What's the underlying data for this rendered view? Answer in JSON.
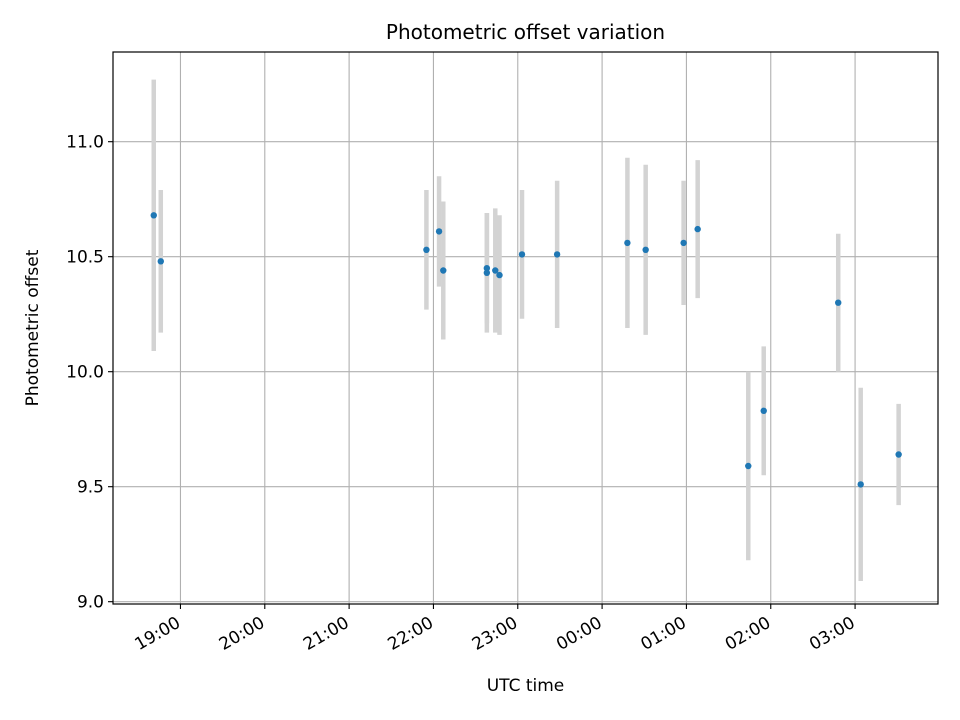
{
  "chart_data": {
    "type": "scatter",
    "title": "Photometric offset variation",
    "xlabel": "UTC time",
    "ylabel": "Photometric offset",
    "x_tick_labels": [
      "19:00",
      "20:00",
      "21:00",
      "22:00",
      "23:00",
      "00:00",
      "01:00",
      "02:00",
      "03:00"
    ],
    "y_tick_labels": [
      "9.0",
      "9.5",
      "10.0",
      "10.5",
      "11.0"
    ],
    "ylim": [
      8.99,
      11.39
    ],
    "xlim": [
      "18:12",
      "03:59"
    ],
    "grid": true,
    "error_bar_color": "#d3d3d3",
    "marker_color": "#1f77b4",
    "points": [
      {
        "x": "18:41",
        "y": 10.68,
        "err": 0.59
      },
      {
        "x": "18:46",
        "y": 10.48,
        "err": 0.31
      },
      {
        "x": "21:55",
        "y": 10.53,
        "err": 0.26
      },
      {
        "x": "22:04",
        "y": 10.61,
        "err": 0.24
      },
      {
        "x": "22:07",
        "y": 10.44,
        "err": 0.3
      },
      {
        "x": "22:38",
        "y": 10.45,
        "err": 0.24
      },
      {
        "x": "22:38",
        "y": 10.43,
        "err": 0.26
      },
      {
        "x": "22:44",
        "y": 10.44,
        "err": 0.27
      },
      {
        "x": "22:47",
        "y": 10.42,
        "err": 0.26
      },
      {
        "x": "23:03",
        "y": 10.51,
        "err": 0.28
      },
      {
        "x": "23:28",
        "y": 10.51,
        "err": 0.32
      },
      {
        "x": "00:18",
        "y": 10.56,
        "err": 0.37
      },
      {
        "x": "00:31",
        "y": 10.53,
        "err": 0.37
      },
      {
        "x": "00:58",
        "y": 10.56,
        "err": 0.27
      },
      {
        "x": "01:08",
        "y": 10.62,
        "err": 0.3
      },
      {
        "x": "01:44",
        "y": 9.59,
        "err": 0.41
      },
      {
        "x": "01:55",
        "y": 9.83,
        "err": 0.28
      },
      {
        "x": "02:48",
        "y": 10.3,
        "err": 0.3
      },
      {
        "x": "03:04",
        "y": 9.51,
        "err": 0.42
      },
      {
        "x": "03:31",
        "y": 9.64,
        "err": 0.22
      }
    ]
  }
}
